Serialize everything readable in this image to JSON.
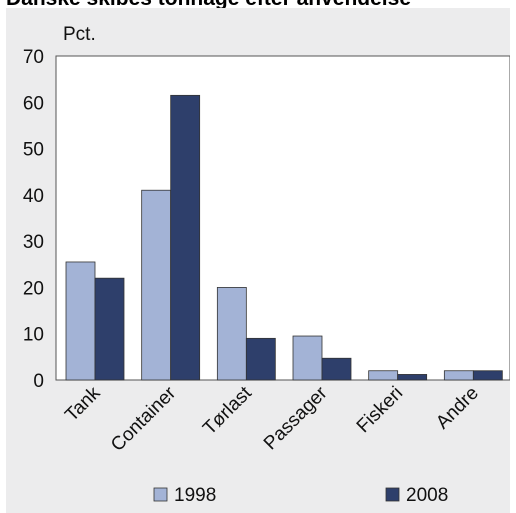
{
  "chart_data": {
    "type": "bar",
    "title": "Danske skibes tonnage efter anvendelse",
    "unit_label": "Pct.",
    "categories": [
      "Tank",
      "Container",
      "Tørlast",
      "Passager",
      "Fiskeri",
      "Andre"
    ],
    "series": [
      {
        "name": "1998",
        "values": [
          25.5,
          41.0,
          20.0,
          9.5,
          2.0,
          2.0
        ],
        "color": "#a3b3d6"
      },
      {
        "name": "2008",
        "values": [
          22.0,
          61.5,
          9.0,
          4.7,
          1.2,
          2.0
        ],
        "color": "#2e3f6b"
      }
    ],
    "ylim": [
      0,
      70
    ],
    "yticks": [
      0,
      10,
      20,
      30,
      40,
      50,
      60,
      70
    ],
    "grid": false,
    "legend_position": "bottom"
  }
}
